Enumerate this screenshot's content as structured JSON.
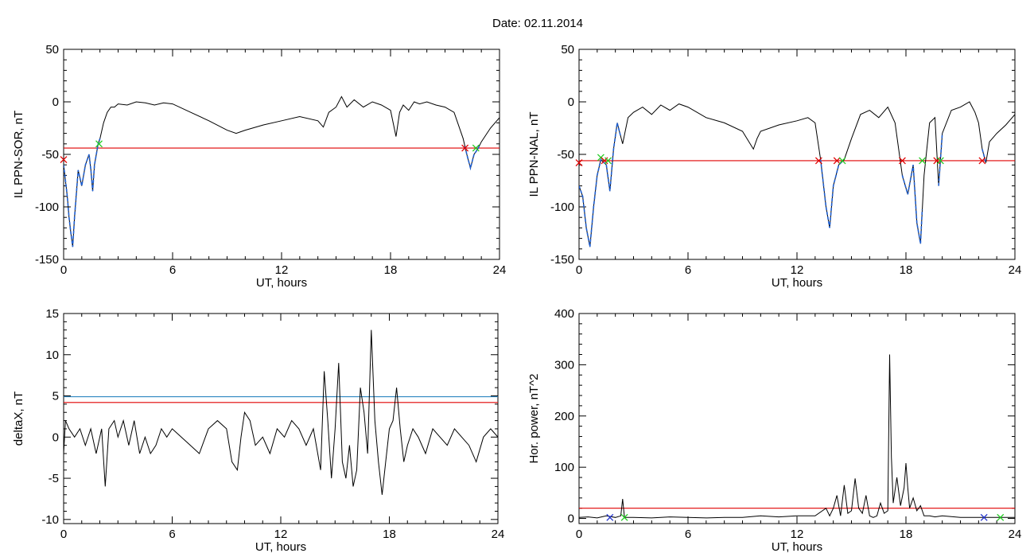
{
  "page": {
    "date_label": "Date:  02.11.2014"
  },
  "colors": {
    "axis": "#000000",
    "data_line": "#000000",
    "highlight_line": "#1f5fd0",
    "threshold_red": "#e00000",
    "threshold_blue": "#2e86c1",
    "marker_red": "#e00000",
    "marker_green": "#22cc22",
    "marker_blue": "#2233cc"
  },
  "chart_data": [
    {
      "type": "line",
      "id": "il-ppn-sor",
      "ylabel": "IL PPN-SOR, nT",
      "xlabel": "UT, hours",
      "xlim": [
        0,
        24
      ],
      "ylim": [
        -150,
        50
      ],
      "xticks": [
        0,
        6,
        12,
        18,
        24
      ],
      "yticks": [
        -150,
        -100,
        -50,
        0,
        50
      ],
      "series": [
        {
          "role": "signal",
          "x": [
            0,
            0.1,
            0.2,
            0.3,
            0.4,
            0.5,
            0.6,
            0.8,
            1.0,
            1.2,
            1.4,
            1.5,
            1.6,
            1.7,
            1.8,
            1.9,
            2.0,
            2.2,
            2.4,
            2.6,
            2.8,
            3.0,
            3.5,
            4.0,
            4.5,
            5.0,
            5.5,
            6.0,
            7.0,
            8.0,
            9.0,
            9.5,
            10.0,
            11.0,
            12.0,
            13.0,
            14.0,
            14.3,
            14.6,
            15.0,
            15.3,
            15.6,
            16.0,
            16.5,
            17.0,
            17.5,
            18.0,
            18.3,
            18.5,
            18.7,
            19.0,
            19.3,
            19.6,
            20.0,
            20.5,
            21.0,
            21.5,
            22.0,
            22.2,
            22.4,
            22.6,
            22.8,
            23.0,
            23.5,
            24.0
          ],
          "y": [
            -60,
            -75,
            -90,
            -110,
            -125,
            -138,
            -110,
            -65,
            -80,
            -60,
            -50,
            -65,
            -85,
            -60,
            -50,
            -40,
            -35,
            -20,
            -10,
            -5,
            -5,
            -2,
            -3,
            0,
            -1,
            -3,
            -1,
            -2,
            -10,
            -18,
            -27,
            -30,
            -27,
            -22,
            -18,
            -14,
            -18,
            -24,
            -10,
            -5,
            5,
            -5,
            2,
            -5,
            0,
            -3,
            -8,
            -33,
            -10,
            -3,
            -8,
            0,
            -2,
            0,
            -3,
            -5,
            -10,
            -35,
            -50,
            -63,
            -50,
            -45,
            -38,
            -25,
            -15
          ]
        },
        {
          "role": "threshold",
          "color": "red",
          "y_value": -44
        }
      ],
      "highlighted_intervals": [
        [
          0,
          2.0
        ],
        [
          22.1,
          22.9
        ]
      ],
      "markers": [
        {
          "x": 0.0,
          "y": -55,
          "color": "red"
        },
        {
          "x": 1.95,
          "y": -40,
          "color": "green"
        },
        {
          "x": 22.1,
          "y": -44,
          "color": "red"
        },
        {
          "x": 22.7,
          "y": -44,
          "color": "green"
        }
      ]
    },
    {
      "type": "line",
      "id": "il-ppn-nal",
      "ylabel": "IL PPN-NAL, nT",
      "xlabel": "UT, hours",
      "xlim": [
        0,
        24
      ],
      "ylim": [
        -150,
        50
      ],
      "xticks": [
        0,
        6,
        12,
        18,
        24
      ],
      "yticks": [
        -150,
        -100,
        -50,
        0,
        50
      ],
      "series": [
        {
          "role": "signal",
          "x": [
            0,
            0.2,
            0.4,
            0.6,
            0.8,
            1.0,
            1.2,
            1.5,
            1.7,
            1.9,
            2.1,
            2.4,
            2.7,
            3.0,
            3.5,
            4.0,
            4.5,
            5.0,
            5.5,
            6.0,
            7.0,
            8.0,
            9.0,
            9.6,
            9.8,
            10.0,
            11.0,
            12.0,
            12.6,
            13.0,
            13.3,
            13.6,
            13.8,
            14.0,
            14.3,
            14.6,
            15.0,
            15.5,
            16.0,
            16.5,
            17.0,
            17.4,
            17.8,
            18.1,
            18.4,
            18.6,
            18.8,
            19.0,
            19.3,
            19.6,
            19.8,
            20.0,
            20.5,
            21.0,
            21.5,
            21.8,
            22.0,
            22.2,
            22.4,
            22.6,
            23.0,
            23.5,
            24.0
          ],
          "y": [
            -80,
            -90,
            -120,
            -138,
            -100,
            -70,
            -55,
            -60,
            -85,
            -45,
            -20,
            -40,
            -15,
            -10,
            -5,
            -12,
            -3,
            -8,
            -2,
            -5,
            -15,
            -20,
            -28,
            -45,
            -35,
            -28,
            -22,
            -18,
            -15,
            -20,
            -55,
            -100,
            -120,
            -80,
            -60,
            -55,
            -35,
            -12,
            -8,
            -15,
            -5,
            -20,
            -70,
            -88,
            -60,
            -115,
            -135,
            -70,
            -20,
            -15,
            -80,
            -30,
            -8,
            -5,
            0,
            -10,
            -20,
            -45,
            -58,
            -38,
            -30,
            -22,
            -12
          ]
        },
        {
          "role": "threshold",
          "color": "red",
          "y_value": -56
        }
      ],
      "highlighted_intervals": [
        [
          0,
          2.3
        ],
        [
          13.3,
          14.5
        ],
        [
          17.8,
          18.9
        ],
        [
          19.8,
          20.0
        ],
        [
          22.2,
          22.4
        ]
      ],
      "markers": [
        {
          "x": 0.0,
          "y": -58,
          "color": "red"
        },
        {
          "x": 1.2,
          "y": -53,
          "color": "green"
        },
        {
          "x": 1.4,
          "y": -56,
          "color": "red"
        },
        {
          "x": 1.6,
          "y": -56,
          "color": "green"
        },
        {
          "x": 13.2,
          "y": -56,
          "color": "red"
        },
        {
          "x": 14.2,
          "y": -56,
          "color": "red"
        },
        {
          "x": 14.5,
          "y": -56,
          "color": "green"
        },
        {
          "x": 17.8,
          "y": -56,
          "color": "red"
        },
        {
          "x": 18.9,
          "y": -56,
          "color": "green"
        },
        {
          "x": 19.7,
          "y": -56,
          "color": "red"
        },
        {
          "x": 19.9,
          "y": -56,
          "color": "green"
        },
        {
          "x": 22.2,
          "y": -56,
          "color": "red"
        }
      ]
    },
    {
      "type": "line",
      "id": "deltax",
      "ylabel": "deltaX, nT",
      "xlabel": "UT, hours",
      "xlim": [
        0,
        24
      ],
      "ylim": [
        -10.5,
        15
      ],
      "xticks": [
        0,
        6,
        12,
        18,
        24
      ],
      "yticks": [
        -10,
        -5,
        0,
        5,
        10,
        15
      ],
      "series": [
        {
          "role": "signal",
          "x": [
            0,
            0.1,
            0.3,
            0.6,
            0.9,
            1.2,
            1.5,
            1.8,
            2.1,
            2.3,
            2.5,
            2.8,
            3.0,
            3.3,
            3.6,
            3.9,
            4.2,
            4.5,
            4.8,
            5.1,
            5.4,
            5.7,
            6.0,
            6.5,
            7.0,
            7.5,
            8.0,
            8.5,
            9.0,
            9.3,
            9.6,
            9.8,
            10.0,
            10.3,
            10.6,
            11.0,
            11.4,
            11.8,
            12.2,
            12.6,
            13.0,
            13.4,
            13.8,
            14.2,
            14.4,
            14.6,
            14.8,
            15.0,
            15.2,
            15.4,
            15.6,
            15.8,
            16.0,
            16.2,
            16.4,
            16.6,
            16.8,
            17.0,
            17.2,
            17.4,
            17.6,
            17.8,
            18.0,
            18.2,
            18.4,
            18.6,
            18.8,
            19.0,
            19.3,
            19.6,
            20.0,
            20.4,
            20.8,
            21.2,
            21.6,
            22.0,
            22.4,
            22.8,
            23.2,
            23.6,
            24.0
          ],
          "y": [
            -2,
            2,
            1,
            0,
            1,
            -1,
            1,
            -2,
            1,
            -6,
            1,
            2,
            0,
            2,
            -1,
            2,
            -2,
            0,
            -2,
            -1,
            1,
            0,
            1,
            0,
            -1,
            -2,
            1,
            2,
            1,
            -3,
            -4,
            0,
            3,
            2,
            -1,
            0,
            -2,
            1,
            0,
            2,
            1,
            -1,
            1,
            -4,
            8,
            2,
            -5,
            1,
            9,
            -3,
            -5,
            -1,
            -6,
            -4,
            6,
            3,
            -2,
            13,
            2,
            -3,
            -7,
            -3,
            1,
            2,
            6,
            1,
            -3,
            -1,
            1,
            0,
            -2,
            1,
            0,
            -1,
            1,
            0,
            -1,
            -3,
            0,
            1,
            0
          ]
        },
        {
          "role": "threshold",
          "color": "red",
          "y_value": 4.2
        },
        {
          "role": "threshold",
          "color": "blue",
          "y_value": 4.9
        }
      ]
    },
    {
      "type": "line",
      "id": "hor-power",
      "ylabel": "Hor. power, nT^2",
      "xlabel": "UT, hours",
      "xlim": [
        0,
        24
      ],
      "ylim": [
        -10,
        400
      ],
      "xticks": [
        0,
        6,
        12,
        18,
        24
      ],
      "yticks": [
        0,
        100,
        200,
        300,
        400
      ],
      "series": [
        {
          "role": "signal",
          "x": [
            0,
            0.5,
            1.0,
            1.5,
            2.0,
            2.3,
            2.4,
            2.5,
            3.0,
            4.0,
            5.0,
            6.0,
            7.0,
            8.0,
            9.0,
            10.0,
            11.0,
            12.0,
            13.0,
            13.6,
            13.8,
            14.0,
            14.2,
            14.4,
            14.6,
            14.8,
            15.0,
            15.2,
            15.4,
            15.6,
            15.8,
            16.0,
            16.2,
            16.4,
            16.6,
            16.8,
            17.0,
            17.1,
            17.2,
            17.3,
            17.5,
            17.7,
            17.9,
            18.0,
            18.1,
            18.2,
            18.4,
            18.6,
            18.8,
            19.0,
            19.3,
            19.6,
            20.0,
            21.0,
            22.0,
            23.0,
            24.0
          ],
          "y": [
            2,
            3,
            1,
            5,
            2,
            5,
            38,
            2,
            2,
            1,
            3,
            2,
            1,
            2,
            2,
            5,
            3,
            5,
            5,
            20,
            5,
            20,
            45,
            5,
            65,
            10,
            15,
            78,
            20,
            10,
            45,
            5,
            2,
            5,
            30,
            10,
            15,
            320,
            120,
            30,
            80,
            25,
            60,
            108,
            60,
            20,
            40,
            15,
            25,
            5,
            5,
            3,
            5,
            2,
            2,
            2,
            2
          ]
        },
        {
          "role": "threshold",
          "color": "red",
          "y_value": 20
        }
      ],
      "markers": [
        {
          "x": 1.7,
          "y": 2,
          "color": "blue"
        },
        {
          "x": 2.5,
          "y": 2,
          "color": "green"
        },
        {
          "x": 22.3,
          "y": 2,
          "color": "blue"
        },
        {
          "x": 23.2,
          "y": 2,
          "color": "green"
        }
      ]
    }
  ]
}
